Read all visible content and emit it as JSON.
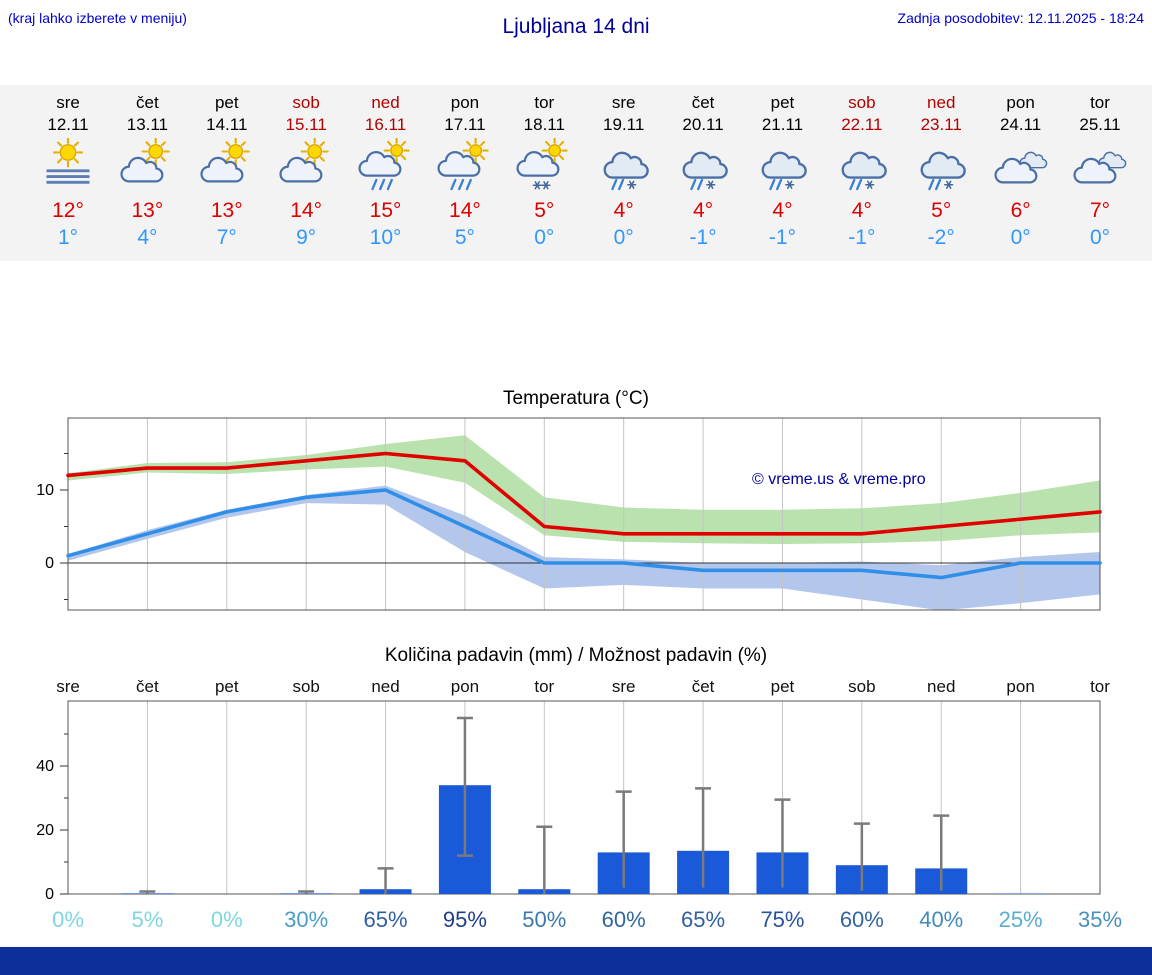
{
  "header": {
    "note": "(kraj lahko izberete v meniju)",
    "title": "Ljubljana 14 dni",
    "updated": "Zadnja posodobitev: 12.11.2025 - 18:24"
  },
  "colors": {
    "link_blue": "#0000cc",
    "title_navy": "#000099",
    "high_red": "#dd0000",
    "low_blue": "#2f97ff",
    "weekend_red": "#b30000",
    "bar_blue": "#1a5ad8",
    "band_green": "#b9e2ae",
    "band_blue": "#b3c7ec",
    "line_red": "#e00000",
    "line_blue": "#2f8fe8",
    "footer_navy": "#0d2f9a"
  },
  "forecast": {
    "days": [
      {
        "name": "sre",
        "date": "12.11",
        "weekend": false,
        "icon": "sun-fog",
        "high": "12°",
        "low": "1°"
      },
      {
        "name": "čet",
        "date": "13.11",
        "weekend": false,
        "icon": "sun-cloud",
        "high": "13°",
        "low": "4°"
      },
      {
        "name": "pet",
        "date": "14.11",
        "weekend": false,
        "icon": "sun-cloud",
        "high": "13°",
        "low": "7°"
      },
      {
        "name": "sob",
        "date": "15.11",
        "weekend": true,
        "icon": "sun-cloud",
        "high": "14°",
        "low": "9°"
      },
      {
        "name": "ned",
        "date": "16.11",
        "weekend": true,
        "icon": "sun-cloud-rain",
        "high": "15°",
        "low": "10°"
      },
      {
        "name": "pon",
        "date": "17.11",
        "weekend": false,
        "icon": "sun-cloud-rain",
        "high": "14°",
        "low": "5°"
      },
      {
        "name": "tor",
        "date": "18.11",
        "weekend": false,
        "icon": "sun-cloud-snow",
        "high": "5°",
        "low": "0°"
      },
      {
        "name": "sre",
        "date": "19.11",
        "weekend": false,
        "icon": "cloud-rain-snow",
        "high": "4°",
        "low": "0°"
      },
      {
        "name": "čet",
        "date": "20.11",
        "weekend": false,
        "icon": "cloud-rain-snow",
        "high": "4°",
        "low": "-1°"
      },
      {
        "name": "pet",
        "date": "21.11",
        "weekend": false,
        "icon": "cloud-rain-snow",
        "high": "4°",
        "low": "-1°"
      },
      {
        "name": "sob",
        "date": "22.11",
        "weekend": true,
        "icon": "cloud-rain-snow",
        "high": "4°",
        "low": "-1°"
      },
      {
        "name": "ned",
        "date": "23.11",
        "weekend": true,
        "icon": "cloud-rain-snow",
        "high": "5°",
        "low": "-2°"
      },
      {
        "name": "pon",
        "date": "24.11",
        "weekend": false,
        "icon": "clouds",
        "high": "6°",
        "low": "0°"
      },
      {
        "name": "tor",
        "date": "25.11",
        "weekend": false,
        "icon": "clouds",
        "high": "7°",
        "low": "0°"
      }
    ]
  },
  "chart_data": [
    {
      "type": "line",
      "title": "Temperatura (°C)",
      "watermark": "© vreme.us & vreme.pro",
      "x_labels": [
        "sre",
        "čet",
        "pet",
        "sob",
        "ned",
        "pon",
        "tor",
        "sre",
        "čet",
        "pet",
        "sob",
        "ned",
        "pon",
        "tor"
      ],
      "ylim": [
        -7,
        20
      ],
      "yticks": [
        0,
        10
      ],
      "yticks_minor": [
        -5,
        5,
        15
      ],
      "grid": "vertical-per-day",
      "series": [
        {
          "name": "high-temp",
          "color": "#e00000",
          "values": [
            12,
            13,
            13,
            14,
            15,
            14,
            5,
            4,
            4,
            4,
            4,
            5,
            6,
            7
          ]
        },
        {
          "name": "low-temp",
          "color": "#2f8fe8",
          "values": [
            1,
            4,
            7,
            9,
            10,
            5,
            0,
            0,
            -1,
            -1,
            -1,
            -2,
            0,
            0
          ]
        }
      ],
      "bands": [
        {
          "name": "high-temp-range",
          "color": "#b9e2ae",
          "upper": [
            12.3,
            13.7,
            13.8,
            14.8,
            16.3,
            17.5,
            9.0,
            7.6,
            7.3,
            7.3,
            7.5,
            8.2,
            9.6,
            11.3
          ],
          "lower": [
            11.3,
            12.4,
            12.2,
            12.8,
            13.2,
            11.0,
            3.8,
            2.9,
            2.7,
            2.6,
            2.7,
            3.0,
            3.8,
            4.2
          ]
        },
        {
          "name": "low-temp-range",
          "color": "#b3c7ec",
          "upper": [
            1.2,
            4.5,
            7.3,
            9.3,
            10.6,
            6.5,
            0.8,
            0.5,
            0.0,
            0.0,
            0.2,
            -0.3,
            0.8,
            1.5
          ],
          "lower": [
            0.3,
            3.3,
            6.2,
            8.2,
            8.0,
            1.5,
            -3.5,
            -3.0,
            -3.5,
            -3.5,
            -5.0,
            -6.5,
            -5.5,
            -4.3
          ]
        }
      ]
    },
    {
      "type": "bar",
      "title": "Količina padavin (mm) / Možnost padavin (%)",
      "categories": [
        "sre",
        "čet",
        "pet",
        "sob",
        "ned",
        "pon",
        "tor",
        "sre",
        "čet",
        "pet",
        "sob",
        "ned",
        "pon",
        "tor"
      ],
      "values_mm": [
        0,
        0.2,
        0,
        0.2,
        1.5,
        34,
        1.5,
        13,
        13.5,
        13,
        9,
        8,
        0.15,
        0
      ],
      "whisker_low": [
        0,
        0,
        0,
        0,
        0,
        12,
        0,
        2,
        2,
        2,
        1,
        1,
        0,
        0
      ],
      "whisker_high": [
        0,
        0.8,
        0,
        0.8,
        8,
        55,
        21,
        32,
        33,
        29.5,
        22,
        24.5,
        0,
        0
      ],
      "probability": [
        "0%",
        "5%",
        "0%",
        "30%",
        "65%",
        "95%",
        "50%",
        "60%",
        "65%",
        "75%",
        "60%",
        "40%",
        "25%",
        "35%"
      ],
      "probability_colors": [
        "#7ed7e0",
        "#7ed7e0",
        "#7ed7e0",
        "#4a9cc8",
        "#2f5fa3",
        "#1d3f8f",
        "#3a78ad",
        "#31659f",
        "#2f5fa3",
        "#27529b",
        "#31659f",
        "#4489b7",
        "#58aecf",
        "#4791bb"
      ],
      "ylim": [
        0,
        60
      ],
      "yticks": [
        0,
        20,
        40
      ],
      "yticks_minor": [
        10,
        30,
        50
      ],
      "grid": "vertical-per-day"
    }
  ]
}
